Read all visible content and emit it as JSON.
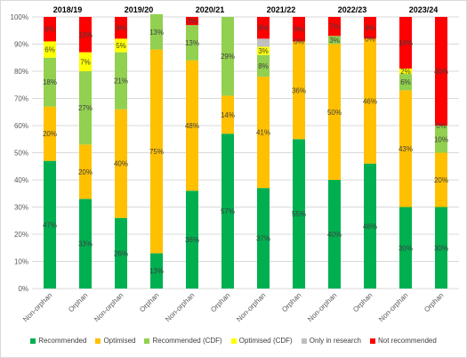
{
  "chart_data": {
    "type": "bar",
    "stacked": true,
    "ylim": [
      0,
      100
    ],
    "yticks": [
      "0%",
      "10%",
      "20%",
      "30%",
      "40%",
      "50%",
      "60%",
      "70%",
      "80%",
      "90%",
      "100%"
    ],
    "grid": true,
    "legend_position": "bottom",
    "groups": [
      "2018/19",
      "2019/20",
      "2020/21",
      "2021/22",
      "2022/23",
      "2023/24"
    ],
    "categories": [
      "Non-orphan",
      "Orphan",
      "Non-orphan",
      "Orphan",
      "Non-orphan",
      "Orphan",
      "Non-orphan",
      "Orphan",
      "Non-orphan",
      "Orphan",
      "Non-orphan",
      "Orphan"
    ],
    "series": [
      {
        "name": "Recommended",
        "color": "#00b050",
        "values": [
          47,
          33,
          26,
          13,
          36,
          57,
          37,
          55,
          40,
          46,
          30,
          30
        ],
        "labels": [
          "47%",
          "33%",
          "26%",
          "13%",
          "36%",
          "57%",
          "37%",
          "55%",
          "40%",
          "46%",
          "30%",
          "30%"
        ]
      },
      {
        "name": "Optimised",
        "color": "#ffc000",
        "values": [
          20,
          20,
          40,
          75,
          48,
          14,
          41,
          36,
          50,
          46,
          43,
          20
        ],
        "labels": [
          "20%",
          "20%",
          "40%",
          "75%",
          "48%",
          "14%",
          "41%",
          "36%",
          "50%",
          "46%",
          "43%",
          "20%"
        ]
      },
      {
        "name": "Recommended (CDF)",
        "color": "#92d050",
        "values": [
          18,
          27,
          21,
          13,
          13,
          29,
          8,
          0,
          3,
          0,
          6,
          10
        ],
        "labels": [
          "18%",
          "27%",
          "21%",
          "13%",
          "13%",
          "29%",
          "8%",
          "0%",
          "3%",
          "0%",
          "6%",
          "10%"
        ]
      },
      {
        "name": "Optimised (CDF)",
        "color": "#ffff00",
        "values": [
          6,
          7,
          5,
          0,
          0,
          0,
          3,
          0,
          0,
          0,
          2,
          0
        ],
        "labels": [
          "6%",
          "7%",
          "5%",
          "",
          "",
          "",
          "3%",
          "",
          "",
          "",
          "2%",
          "0%"
        ]
      },
      {
        "name": "Only in research",
        "color": "#bfbfbf",
        "values": [
          0,
          0,
          0,
          0,
          0,
          0,
          3,
          0,
          0,
          0,
          0,
          0
        ],
        "labels": [
          "",
          "",
          "",
          "",
          "",
          "",
          "",
          "",
          "",
          "",
          "",
          ""
        ]
      },
      {
        "name": "Not recommended",
        "color": "#ff0000",
        "values": [
          9,
          13,
          8,
          0,
          3,
          0,
          8,
          9,
          7,
          8,
          19,
          40
        ],
        "labels": [
          "9%",
          "13%",
          "8%",
          "",
          "3%",
          "",
          "8%",
          "9%",
          "7%",
          "8%",
          "19%",
          "40%"
        ]
      }
    ]
  }
}
